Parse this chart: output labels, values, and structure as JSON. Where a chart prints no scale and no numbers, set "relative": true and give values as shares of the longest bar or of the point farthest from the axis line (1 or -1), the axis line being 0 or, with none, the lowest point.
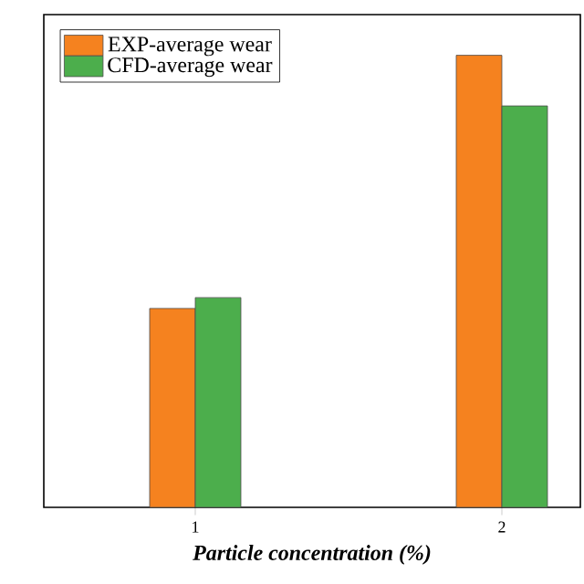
{
  "chart_data": {
    "type": "bar",
    "xlabel": "Particle concentration (%)",
    "categories": [
      "1",
      "2"
    ],
    "relative": true,
    "legend": "top left",
    "series": [
      {
        "name": "EXP-average wear",
        "color": "#f5821f",
        "values": [
          0.44,
          1
        ]
      },
      {
        "name": "CFD-average wear",
        "color": "#4cae4c",
        "values": [
          0.464,
          0.888
        ]
      }
    ]
  }
}
